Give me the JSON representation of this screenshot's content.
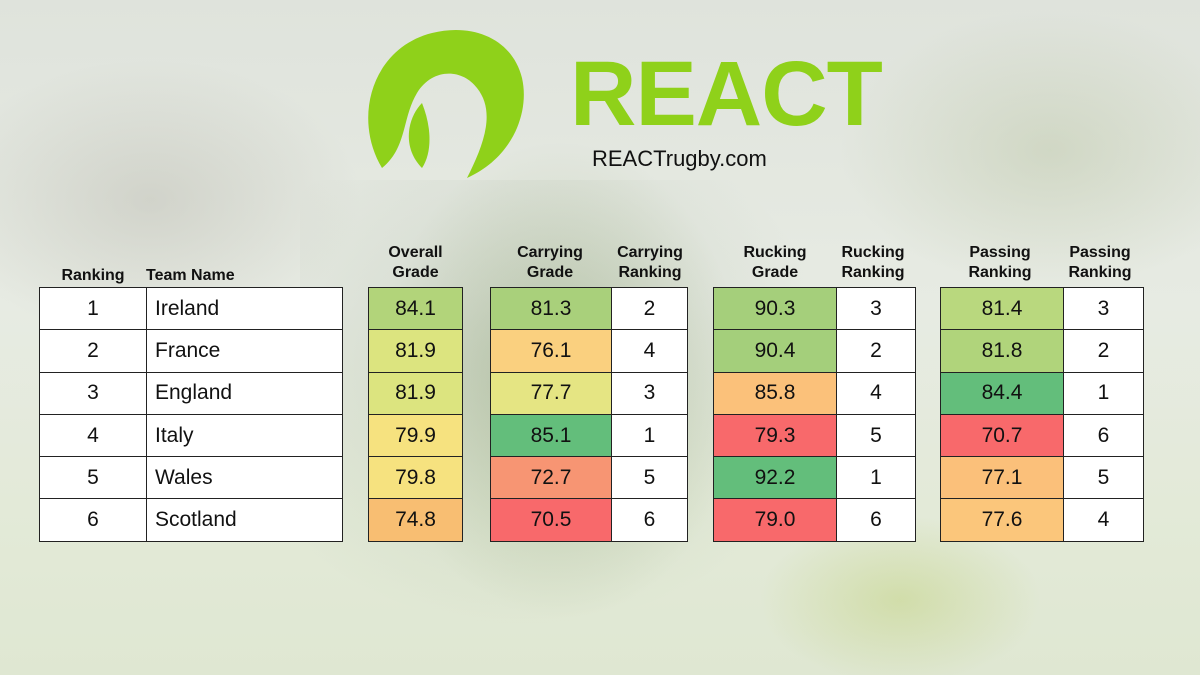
{
  "brand": {
    "name": "REACT",
    "website": "REACTrugby.com",
    "color": "#8fd11a"
  },
  "headers": {
    "ranking": "Ranking",
    "team_name": "Team Name",
    "overall_grade": [
      "Overall",
      "Grade"
    ],
    "carrying_grade": [
      "Carrying",
      "Grade"
    ],
    "carrying_ranking": [
      "Carrying",
      "Ranking"
    ],
    "rucking_grade": [
      "Rucking",
      "Grade"
    ],
    "rucking_ranking": [
      "Rucking",
      "Ranking"
    ],
    "passing_ranking_1": [
      "Passing",
      "Ranking"
    ],
    "passing_ranking_2": [
      "Passing",
      "Ranking"
    ]
  },
  "teams": [
    {
      "rank": "1",
      "name": "Ireland",
      "overall": "84.1",
      "carrying": "81.3",
      "carrying_rank": "2",
      "rucking": "90.3",
      "rucking_rank": "3",
      "passing": "81.4",
      "passing_rank": "3"
    },
    {
      "rank": "2",
      "name": "France",
      "overall": "81.9",
      "carrying": "76.1",
      "carrying_rank": "4",
      "rucking": "90.4",
      "rucking_rank": "2",
      "passing": "81.8",
      "passing_rank": "2"
    },
    {
      "rank": "3",
      "name": "England",
      "overall": "81.9",
      "carrying": "77.7",
      "carrying_rank": "3",
      "rucking": "85.8",
      "rucking_rank": "4",
      "passing": "84.4",
      "passing_rank": "1"
    },
    {
      "rank": "4",
      "name": "Italy",
      "overall": "79.9",
      "carrying": "85.1",
      "carrying_rank": "1",
      "rucking": "79.3",
      "rucking_rank": "5",
      "passing": "70.7",
      "passing_rank": "6"
    },
    {
      "rank": "5",
      "name": "Wales",
      "overall": "79.8",
      "carrying": "72.7",
      "carrying_rank": "5",
      "rucking": "92.2",
      "rucking_rank": "1",
      "passing": "77.1",
      "passing_rank": "5"
    },
    {
      "rank": "6",
      "name": "Scotland",
      "overall": "74.8",
      "carrying": "70.5",
      "carrying_rank": "6",
      "rucking": "79.0",
      "rucking_rank": "6",
      "passing": "77.6",
      "passing_rank": "4"
    }
  ],
  "cell_colors": {
    "overall": [
      "#b2d47a",
      "#dce47f",
      "#dce47f",
      "#f6e27f",
      "#f6e27f",
      "#f8be72"
    ],
    "carrying": [
      "#a9d07b",
      "#fad07f",
      "#e5e583",
      "#63be7b",
      "#f79573",
      "#f8696b"
    ],
    "rucking": [
      "#a5cf7b",
      "#a4cf7b",
      "#fbc17a",
      "#f8696b",
      "#63be7b",
      "#f8696b"
    ],
    "passing": [
      "#b9d87e",
      "#b0d47b",
      "#63be7b",
      "#f8696b",
      "#fbc07a",
      "#fbc67b"
    ]
  }
}
